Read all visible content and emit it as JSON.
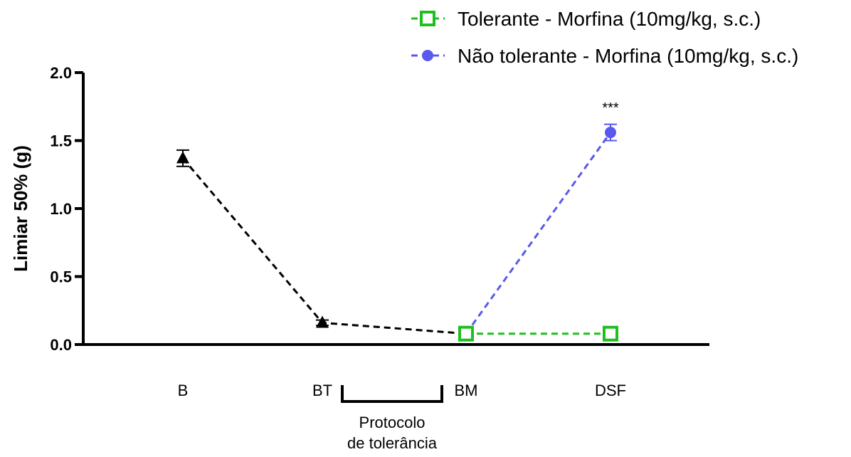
{
  "chart_data": {
    "type": "line",
    "title": "",
    "xlabel": "",
    "ylabel": "Limiar 50% (g)",
    "ylim": [
      0,
      2.0
    ],
    "yticks": [
      "0.0",
      "0.5",
      "1.0",
      "1.5",
      "2.0"
    ],
    "categories": [
      "B",
      "BT",
      "BM",
      "DSF"
    ],
    "grid": false,
    "legend_position": "top-right",
    "series": [
      {
        "name": "",
        "color": "#000000",
        "marker": "triangle",
        "line_style": "dashed",
        "points": [
          {
            "x": "B",
            "y": 1.37,
            "err": 0.06
          },
          {
            "x": "BT",
            "y": 0.16,
            "err": 0.02
          },
          {
            "x": "BM",
            "y": 0.08,
            "err": 0.0
          }
        ]
      },
      {
        "name": "Tolerante - Morfina (10mg/kg, s.c.)",
        "color": "#1ec01e",
        "marker": "open-square",
        "line_style": "dashed",
        "points": [
          {
            "x": "BM",
            "y": 0.08,
            "err": 0.0
          },
          {
            "x": "DSF",
            "y": 0.08,
            "err": 0.0
          }
        ]
      },
      {
        "name": "Não tolerante - Morfina (10mg/kg, s.c.)",
        "color": "#5858ee",
        "marker": "circle",
        "line_style": "dashed",
        "points": [
          {
            "x": "BM",
            "y": 0.08,
            "err": 0.0
          },
          {
            "x": "DSF",
            "y": 1.56,
            "err": 0.06
          }
        ]
      }
    ],
    "annotations": [
      {
        "text": "***",
        "x": "DSF"
      },
      {
        "text": "Protocolo",
        "between": [
          "BT",
          "BM"
        ]
      },
      {
        "text": "de tolerância",
        "between": [
          "BT",
          "BM"
        ]
      }
    ]
  }
}
